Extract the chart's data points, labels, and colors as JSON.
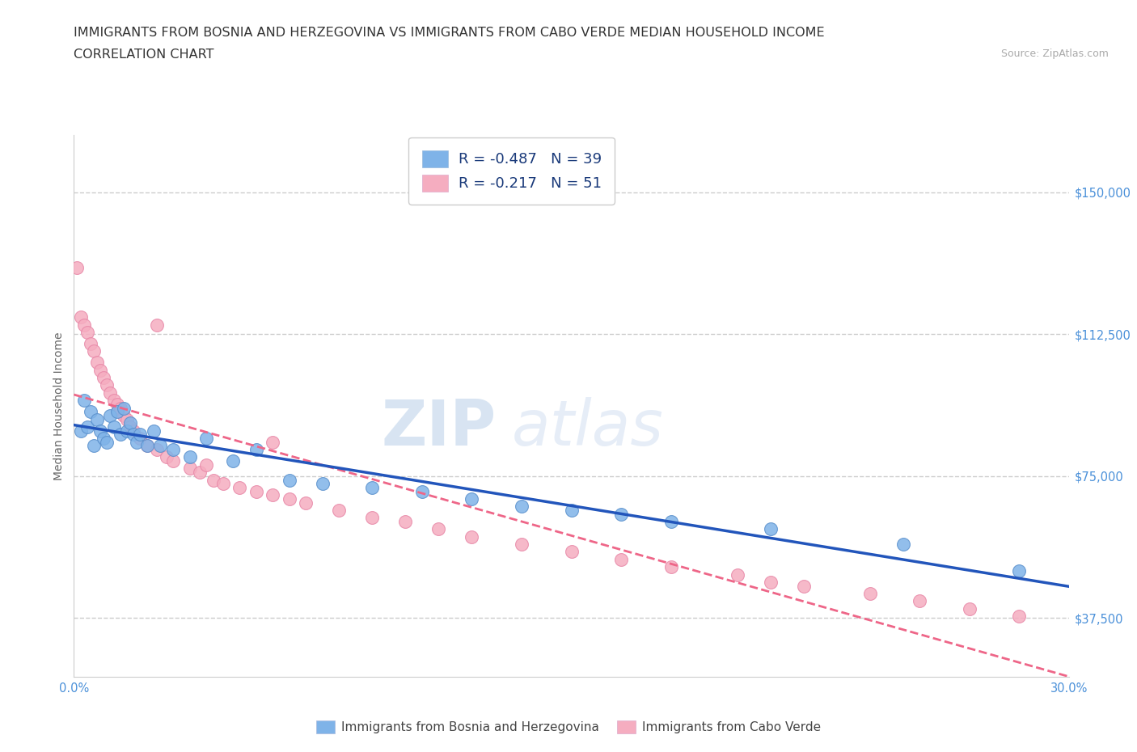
{
  "title_line1": "IMMIGRANTS FROM BOSNIA AND HERZEGOVINA VS IMMIGRANTS FROM CABO VERDE MEDIAN HOUSEHOLD INCOME",
  "title_line2": "CORRELATION CHART",
  "source_text": "Source: ZipAtlas.com",
  "ylabel": "Median Household Income",
  "watermark_zip": "ZIP",
  "watermark_atlas": "atlas",
  "xmin": 0.0,
  "xmax": 0.3,
  "ymin": 22000,
  "ymax": 165000,
  "ytick_vals": [
    37500,
    75000,
    112500,
    150000
  ],
  "ytick_labels": [
    "$37,500",
    "$75,000",
    "$112,500",
    "$150,000"
  ],
  "xtick_vals": [
    0.0,
    0.05,
    0.1,
    0.15,
    0.2,
    0.25,
    0.3
  ],
  "xtick_labels": [
    "0.0%",
    "",
    "",
    "",
    "",
    "",
    "30.0%"
  ],
  "bosnia_color": "#7fb3e8",
  "cabo_color": "#f5adc0",
  "bosnia_edge_color": "#5a90cc",
  "cabo_edge_color": "#e888a8",
  "bosnia_line_color": "#2255bb",
  "cabo_line_color": "#ee6688",
  "cabo_line_style": "--",
  "bosnia_R": -0.487,
  "bosnia_N": 39,
  "cabo_R": -0.217,
  "cabo_N": 51,
  "grid_color": "#cccccc",
  "grid_style": "--",
  "bg_color": "#ffffff",
  "text_color": "#333333",
  "axis_tick_color": "#4a90d9",
  "legend_text_color": "#1a3a7a",
  "source_color": "#aaaaaa",
  "title_fontsize": 11.5,
  "ylabel_fontsize": 10,
  "tick_fontsize": 10.5,
  "legend_fontsize": 13,
  "watermark_fontsize_zip": 56,
  "watermark_fontsize_atlas": 56,
  "marker_size": 130,
  "bosnia_x": [
    0.002,
    0.003,
    0.004,
    0.005,
    0.006,
    0.007,
    0.008,
    0.009,
    0.01,
    0.011,
    0.012,
    0.013,
    0.014,
    0.015,
    0.016,
    0.017,
    0.018,
    0.019,
    0.02,
    0.022,
    0.024,
    0.026,
    0.03,
    0.035,
    0.04,
    0.048,
    0.055,
    0.065,
    0.075,
    0.09,
    0.105,
    0.12,
    0.135,
    0.15,
    0.165,
    0.18,
    0.21,
    0.25,
    0.285
  ],
  "bosnia_y": [
    87000,
    95000,
    88000,
    92000,
    83000,
    90000,
    87000,
    85000,
    84000,
    91000,
    88000,
    92000,
    86000,
    93000,
    87000,
    89000,
    86000,
    84000,
    86000,
    83000,
    87000,
    83000,
    82000,
    80000,
    85000,
    79000,
    82000,
    74000,
    73000,
    72000,
    71000,
    69000,
    67000,
    66000,
    65000,
    63000,
    61000,
    57000,
    50000
  ],
  "cabo_x": [
    0.001,
    0.002,
    0.003,
    0.004,
    0.005,
    0.006,
    0.007,
    0.008,
    0.009,
    0.01,
    0.011,
    0.012,
    0.013,
    0.014,
    0.015,
    0.016,
    0.017,
    0.018,
    0.02,
    0.022,
    0.025,
    0.028,
    0.03,
    0.035,
    0.038,
    0.042,
    0.045,
    0.05,
    0.055,
    0.06,
    0.065,
    0.07,
    0.08,
    0.09,
    0.1,
    0.11,
    0.12,
    0.135,
    0.15,
    0.165,
    0.18,
    0.2,
    0.21,
    0.22,
    0.24,
    0.255,
    0.27,
    0.285,
    0.025,
    0.04,
    0.06
  ],
  "cabo_y": [
    130000,
    117000,
    115000,
    113000,
    110000,
    108000,
    105000,
    103000,
    101000,
    99000,
    97000,
    95000,
    94000,
    93000,
    91000,
    90000,
    88000,
    87000,
    85000,
    83000,
    82000,
    80000,
    79000,
    77000,
    76000,
    74000,
    73000,
    72000,
    71000,
    70000,
    69000,
    68000,
    66000,
    64000,
    63000,
    61000,
    59000,
    57000,
    55000,
    53000,
    51000,
    49000,
    47000,
    46000,
    44000,
    42000,
    40000,
    38000,
    115000,
    78000,
    84000
  ]
}
